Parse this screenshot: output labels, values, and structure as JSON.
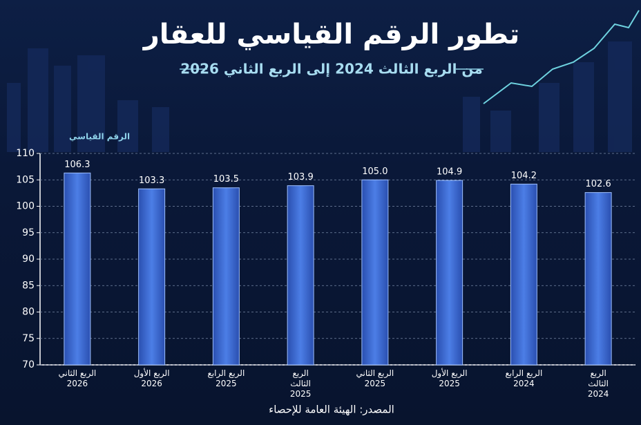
{
  "chart_data": {
    "type": "bar",
    "title": "تطور الرقم القياسي للعقار",
    "subtitle": "من الربع الثالث 2024 إلى الربع الثاني 2026",
    "y_label": "الرقم القياسي",
    "source": "المصدر: الهيئة العامة للإحصاء",
    "categories": [
      "الربع الثاني 2026",
      "الربع الأول 2026",
      "الربع الرابع 2025",
      "الربع الثالث 2025",
      "الربع الثاني 2025",
      "الربع الأول 2025",
      "الربع الرابع 2024",
      "الربع الثالث 2024"
    ],
    "values": [
      106.3,
      103.3,
      103.5,
      103.9,
      105.0,
      104.9,
      104.2,
      102.6
    ],
    "value_labels": [
      "106.3",
      "103.3",
      "103.5",
      "103.9",
      "105.0",
      "104.9",
      "104.2",
      "102.6"
    ],
    "color": "#3a6bd4",
    "ylim": [
      70,
      110
    ],
    "yticks": [
      70,
      75,
      80,
      85,
      90,
      95,
      100,
      105,
      110
    ],
    "grid": true
  }
}
